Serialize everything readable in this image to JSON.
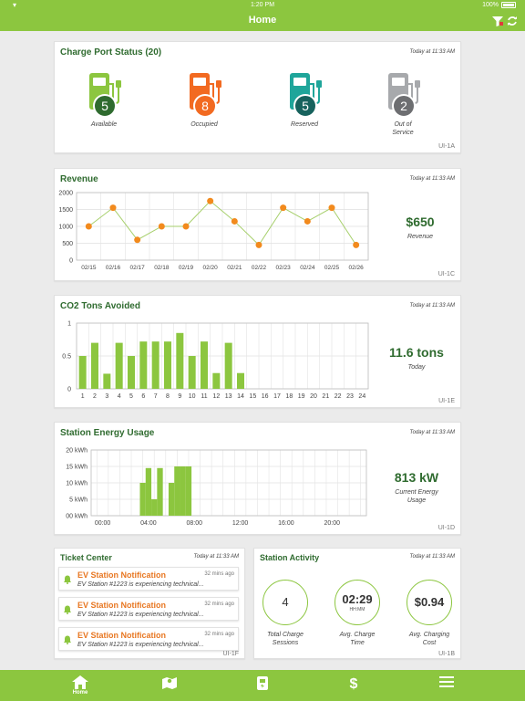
{
  "status_bar": {
    "time": "1:20 PM",
    "battery": "100%"
  },
  "nav": {
    "title": "Home"
  },
  "charge_port": {
    "title": "Charge Port Status (20)",
    "time": "Today at 11:33 AM",
    "code": "UI-1A",
    "ports": [
      {
        "count": "5",
        "label": "Available",
        "color": "#8cc63f"
      },
      {
        "count": "8",
        "label": "Occupied",
        "color": "#f26a21"
      },
      {
        "count": "5",
        "label": "Reserved",
        "color": "#1fa59a"
      },
      {
        "count": "2",
        "label_line1": "Out of",
        "label_line2": "Service",
        "color": "#a7a9ac"
      }
    ]
  },
  "revenue": {
    "title": "Revenue",
    "time": "Today at 11:33 AM",
    "code": "UI-1C",
    "value": "$650",
    "value_label": "Revenue"
  },
  "co2": {
    "title": "CO2 Tons Avoided",
    "time": "Today at 11:33 AM",
    "code": "UI-1E",
    "value": "11.6 tons",
    "value_label": "Today"
  },
  "energy": {
    "title": "Station Energy Usage",
    "time": "Today at 11:33 AM",
    "code": "UI-1D",
    "value": "813 kW",
    "value_label_line1": "Current Energy",
    "value_label_line2": "Usage"
  },
  "ticket_center": {
    "title": "Ticket Center",
    "time": "Today at 11:33 AM",
    "code": "UI-1F",
    "items": [
      {
        "title": "EV Station Notification",
        "message": "EV Station #1223 is experiencing technical...",
        "ago": "32 mins ago"
      },
      {
        "title": "EV Station Notification",
        "message": "EV Station #1223 is experiencing technical...",
        "ago": "32 mins ago"
      },
      {
        "title": "EV Station Notification",
        "message": "EV Station #1223 is experiencing technical...",
        "ago": "32 mins ago"
      }
    ]
  },
  "station_activity": {
    "title": "Station Activity",
    "time": "Today at 11:33 AM",
    "code": "UI-1B",
    "metrics": [
      {
        "value": "4",
        "label_line1": "Total Charge",
        "label_line2": "Sessions"
      },
      {
        "value": "02:29",
        "unit": "HH:MM",
        "label_line1": "Avg. Charge",
        "label_line2": "Time"
      },
      {
        "value": "$0.94",
        "label_line1": "Avg. Charging",
        "label_line2": "Cost"
      }
    ]
  },
  "tabbar": {
    "home_label": "Home"
  },
  "colors": {
    "accent": "#8cc63f",
    "title": "#2f6b2f",
    "orange": "#e87722"
  },
  "chart_data": [
    {
      "type": "line",
      "categories": [
        "02/15",
        "02/16",
        "02/17",
        "02/18",
        "02/19",
        "02/20",
        "02/21",
        "02/22",
        "02/23",
        "02/24",
        "02/25",
        "02/26"
      ],
      "series": [
        {
          "values": [
            1000,
            1550,
            600,
            1000,
            1000,
            1750,
            1150,
            450,
            1550,
            1150,
            1550,
            450
          ]
        }
      ],
      "y_ticks": [
        "0",
        "500",
        "1000",
        "1500",
        "2000"
      ],
      "ylim": [
        0,
        2000
      ],
      "grid": true
    },
    {
      "type": "bar",
      "categories": [
        "1",
        "2",
        "3",
        "4",
        "5",
        "6",
        "7",
        "8",
        "9",
        "10",
        "11",
        "12",
        "13",
        "14",
        "15",
        "16",
        "17",
        "18",
        "19",
        "20",
        "21",
        "22",
        "23",
        "24"
      ],
      "values": [
        0.5,
        0.7,
        0.23,
        0.7,
        0.5,
        0.72,
        0.72,
        0.72,
        0.85,
        0.5,
        0.72,
        0.24,
        0.7,
        0.24,
        0,
        0,
        0,
        0,
        0,
        0,
        0,
        0,
        0,
        0
      ],
      "y_ticks": [
        "0",
        "0.5",
        "1"
      ],
      "ylim": [
        0,
        1
      ],
      "grid": true
    },
    {
      "type": "bar",
      "x_ticks": [
        "00:00",
        "04:00",
        "08:00",
        "12:00",
        "16:00",
        "20:00"
      ],
      "x": [
        3.5,
        4.0,
        4.5,
        5.0,
        6.0,
        6.5,
        7.0,
        7.5
      ],
      "values": [
        10,
        14.5,
        5,
        14.5,
        10,
        15,
        15,
        15
      ],
      "y_ticks": [
        "00 kWh",
        "5 kWh",
        "10 kWh",
        "15 kWh",
        "20 kWh"
      ],
      "ylim": [
        0,
        20
      ],
      "xlim": [
        -1,
        23
      ],
      "grid": true
    }
  ]
}
